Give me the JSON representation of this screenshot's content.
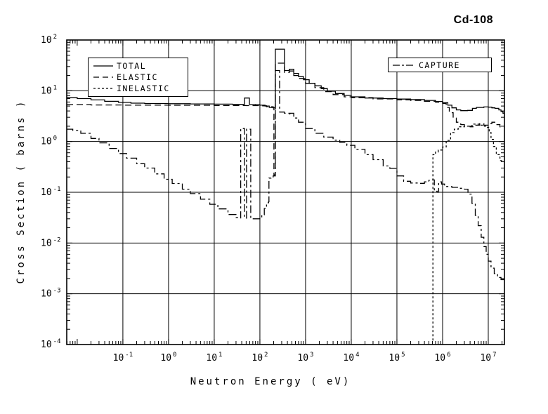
{
  "colors": {
    "ink": "#000000",
    "background": "#ffffff"
  },
  "chart_data": {
    "type": "line",
    "title": "Cd-108",
    "xlabel": "Neutron Energy ( eV)",
    "ylabel": "Cross Section ( barns )",
    "x_scale": "log",
    "y_scale": "log",
    "grid": true,
    "xlim": [
      0.0059,
      22600000
    ],
    "ylim": [
      0.0001,
      100
    ],
    "tick_base": "10",
    "x_tick_exponents": [
      -1,
      0,
      1,
      2,
      3,
      4,
      5,
      6,
      7
    ],
    "y_tick_exponents": [
      2,
      1,
      0,
      -1,
      -2,
      -3,
      -4
    ],
    "legend_main_entries": [
      "TOTAL",
      "ELASTIC",
      "INELASTIC"
    ],
    "legend_capture_entries": [
      "CAPTURE"
    ],
    "series": [
      {
        "name": "TOTAL",
        "line_style": "solid",
        "points": [
          [
            0.0059,
            7.3
          ],
          [
            0.01,
            7.0
          ],
          [
            0.02,
            6.6
          ],
          [
            0.04,
            6.2
          ],
          [
            0.08,
            5.9
          ],
          [
            0.15,
            5.7
          ],
          [
            0.3,
            5.6
          ],
          [
            1,
            5.55
          ],
          [
            3,
            5.5
          ],
          [
            10,
            5.45
          ],
          [
            25,
            5.4
          ],
          [
            46,
            5.4
          ],
          [
            46,
            7.2
          ],
          [
            59,
            7.2
          ],
          [
            59,
            5.35
          ],
          [
            80,
            5.3
          ],
          [
            100,
            5.2
          ],
          [
            130,
            5.0
          ],
          [
            160,
            4.7
          ],
          [
            218,
            4.4
          ],
          [
            218,
            66
          ],
          [
            345,
            66
          ],
          [
            345,
            25
          ],
          [
            440,
            25
          ],
          [
            440,
            26.5
          ],
          [
            550,
            26.5
          ],
          [
            550,
            22
          ],
          [
            700,
            19
          ],
          [
            900,
            16.5
          ],
          [
            1200,
            14
          ],
          [
            1600,
            12.5
          ],
          [
            2200,
            11
          ],
          [
            3000,
            9.8
          ],
          [
            4500,
            8.8
          ],
          [
            7000,
            8.1
          ],
          [
            10000,
            7.6
          ],
          [
            20000,
            7.2
          ],
          [
            50000,
            7.0
          ],
          [
            100000,
            6.85
          ],
          [
            200000,
            6.7
          ],
          [
            400000,
            6.45
          ],
          [
            700000,
            6.15
          ],
          [
            1000000,
            5.8
          ],
          [
            1300000,
            5.2
          ],
          [
            1600000,
            4.6
          ],
          [
            2000000,
            4.2
          ],
          [
            2500000,
            4.05
          ],
          [
            3500000,
            4.1
          ],
          [
            4500000,
            4.5
          ],
          [
            5500000,
            4.7
          ],
          [
            8000000,
            4.8
          ],
          [
            10000000,
            4.75
          ],
          [
            12000000,
            4.6
          ],
          [
            14000000,
            4.5
          ],
          [
            17000000,
            4.2
          ],
          [
            19000000,
            3.9
          ],
          [
            21000000,
            3.6
          ],
          [
            22600000,
            3.45
          ]
        ]
      },
      {
        "name": "ELASTIC",
        "line_style": "long-dash",
        "points": [
          [
            0.0059,
            5.35
          ],
          [
            0.02,
            5.25
          ],
          [
            0.1,
            5.2
          ],
          [
            1,
            5.18
          ],
          [
            10,
            5.12
          ],
          [
            50,
            5.1
          ],
          [
            100,
            5.05
          ],
          [
            140,
            4.85
          ],
          [
            195,
            4.6
          ],
          [
            203,
            0.22
          ],
          [
            216,
            0.22
          ],
          [
            218,
            35
          ],
          [
            345,
            35
          ],
          [
            345,
            23
          ],
          [
            440,
            24.5
          ],
          [
            550,
            20
          ],
          [
            700,
            17.5
          ],
          [
            1000,
            14
          ],
          [
            1600,
            11.5
          ],
          [
            2500,
            9.6
          ],
          [
            4000,
            8.4
          ],
          [
            7000,
            7.6
          ],
          [
            10000,
            7.3
          ],
          [
            30000,
            6.9
          ],
          [
            100000,
            6.6
          ],
          [
            200000,
            6.45
          ],
          [
            400000,
            6.2
          ],
          [
            700000,
            5.95
          ],
          [
            1000000,
            5.6
          ],
          [
            1200000,
            4.7
          ],
          [
            1400000,
            3.7
          ],
          [
            1700000,
            2.9
          ],
          [
            2000000,
            2.4
          ],
          [
            2500000,
            2.15
          ],
          [
            3000000,
            2.0
          ],
          [
            4000000,
            1.95
          ],
          [
            5000000,
            2.1
          ],
          [
            6500000,
            2.25
          ],
          [
            8000000,
            2.1
          ],
          [
            10000000,
            2.25
          ],
          [
            12000000,
            2.4
          ],
          [
            15000000,
            2.15
          ],
          [
            18000000,
            1.95
          ],
          [
            22600000,
            1.85
          ]
        ]
      },
      {
        "name": "INELASTIC",
        "line_style": "short-dash",
        "points": [
          [
            615000,
            0.00012
          ],
          [
            615000,
            0.55
          ],
          [
            700000,
            0.62
          ],
          [
            800000,
            0.68
          ],
          [
            1000000,
            0.78
          ],
          [
            1200000,
            1.05
          ],
          [
            1500000,
            1.5
          ],
          [
            1800000,
            1.75
          ],
          [
            2200000,
            1.95
          ],
          [
            3000000,
            2.0
          ],
          [
            4000000,
            2.05
          ],
          [
            4800000,
            2.2
          ],
          [
            6000000,
            2.2
          ],
          [
            7000000,
            2.1
          ],
          [
            8000000,
            2.0
          ],
          [
            9000000,
            1.9
          ],
          [
            10500000,
            1.5
          ],
          [
            11500000,
            1.1
          ],
          [
            13000000,
            0.8
          ],
          [
            15000000,
            0.55
          ],
          [
            18000000,
            0.42
          ],
          [
            22600000,
            0.38
          ]
        ]
      },
      {
        "name": "CAPTURE",
        "line_style": "dash-dot",
        "points": [
          [
            0.0059,
            1.75
          ],
          [
            0.008,
            1.65
          ],
          [
            0.012,
            1.45
          ],
          [
            0.02,
            1.15
          ],
          [
            0.03,
            0.94
          ],
          [
            0.05,
            0.73
          ],
          [
            0.08,
            0.58
          ],
          [
            0.12,
            0.47
          ],
          [
            0.2,
            0.365
          ],
          [
            0.3,
            0.3
          ],
          [
            0.5,
            0.23
          ],
          [
            0.8,
            0.18
          ],
          [
            1.2,
            0.149
          ],
          [
            2,
            0.115
          ],
          [
            3,
            0.094
          ],
          [
            5,
            0.073
          ],
          [
            8,
            0.058
          ],
          [
            12,
            0.047
          ],
          [
            20,
            0.0365
          ],
          [
            30,
            0.0315
          ],
          [
            38,
            0.0305
          ],
          [
            38,
            1.8
          ],
          [
            46,
            1.8
          ],
          [
            46,
            0.031
          ],
          [
            51,
            0.031
          ],
          [
            51,
            1.75
          ],
          [
            63,
            1.75
          ],
          [
            63,
            0.03
          ],
          [
            80,
            0.03
          ],
          [
            100,
            0.031
          ],
          [
            110,
            0.036
          ],
          [
            125,
            0.048
          ],
          [
            140,
            0.062
          ],
          [
            155,
            0.065
          ],
          [
            158,
            0.19
          ],
          [
            175,
            0.2
          ],
          [
            195,
            0.21
          ],
          [
            218,
            0.21
          ],
          [
            218,
            25
          ],
          [
            270,
            25
          ],
          [
            270,
            3.8
          ],
          [
            345,
            3.6
          ],
          [
            440,
            3.3
          ],
          [
            460,
            3.6
          ],
          [
            550,
            3.6
          ],
          [
            550,
            2.9
          ],
          [
            700,
            2.4
          ],
          [
            1000,
            1.8
          ],
          [
            1600,
            1.45
          ],
          [
            2500,
            1.22
          ],
          [
            4000,
            1.06
          ],
          [
            5600,
            0.96
          ],
          [
            8000,
            0.84
          ],
          [
            12000,
            0.7
          ],
          [
            20000,
            0.55
          ],
          [
            30000,
            0.44
          ],
          [
            50000,
            0.33
          ],
          [
            70000,
            0.295
          ],
          [
            100000,
            0.21
          ],
          [
            140000,
            0.165
          ],
          [
            200000,
            0.152
          ],
          [
            300000,
            0.15
          ],
          [
            400000,
            0.16
          ],
          [
            500000,
            0.172
          ],
          [
            580000,
            0.175
          ],
          [
            660000,
            0.105
          ],
          [
            760000,
            0.1
          ],
          [
            820000,
            0.16
          ],
          [
            950000,
            0.145
          ],
          [
            1100000,
            0.13
          ],
          [
            1600000,
            0.125
          ],
          [
            2200000,
            0.12
          ],
          [
            3000000,
            0.115
          ],
          [
            3600000,
            0.092
          ],
          [
            4400000,
            0.06
          ],
          [
            5200000,
            0.035
          ],
          [
            6000000,
            0.022
          ],
          [
            7000000,
            0.013
          ],
          [
            8000000,
            0.0085
          ],
          [
            9000000,
            0.006
          ],
          [
            10000000,
            0.0044
          ],
          [
            11500000,
            0.0032
          ],
          [
            13500000,
            0.0025
          ],
          [
            16000000,
            0.0021
          ],
          [
            19000000,
            0.0019
          ],
          [
            22600000,
            0.0021
          ]
        ]
      }
    ]
  }
}
